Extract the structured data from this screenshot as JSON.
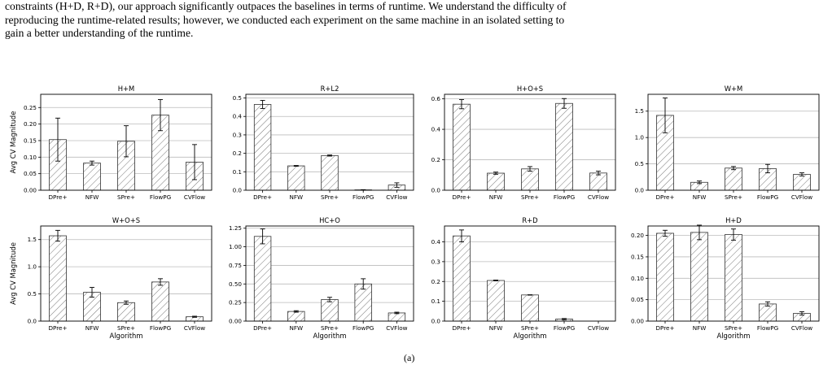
{
  "paragraph": {
    "line1": "constraints (H+D, R+D), our approach significantly outpaces the baselines in terms of runtime. We understand the difficulty of",
    "line2": "reproducing the runtime-related results; however, we conducted each experiment on the same machine in an isolated setting to",
    "line3": "gain a better understanding of the runtime."
  },
  "caption_fragment": "(a)",
  "chart_data": [
    {
      "type": "bar",
      "title": "H+M",
      "categories": [
        "DPre+",
        "NFW",
        "SPre+",
        "FlowPG",
        "CVFlow"
      ],
      "values": [
        0.153,
        0.082,
        0.148,
        0.227,
        0.085
      ],
      "errors": [
        0.065,
        0.006,
        0.047,
        0.047,
        0.053
      ],
      "ylim": [
        0,
        0.29
      ],
      "yticks": [
        0.0,
        0.05,
        0.1,
        0.15,
        0.2,
        0.25
      ],
      "ytick_labels": [
        "0.00",
        "0.05",
        "0.10",
        "0.15",
        "0.20",
        "0.25"
      ],
      "ylabel": "Avg CV Magnitude",
      "xlabel": "",
      "hatch": true,
      "grid": "y"
    },
    {
      "type": "bar",
      "title": "R+L2",
      "categories": [
        "DPre+",
        "NFW",
        "SPre+",
        "FlowPG",
        "CVFlow"
      ],
      "values": [
        0.465,
        0.132,
        0.188,
        0.002,
        0.028
      ],
      "errors": [
        0.022,
        0.002,
        0.003,
        0.001,
        0.012
      ],
      "ylim": [
        0,
        0.52
      ],
      "yticks": [
        0.0,
        0.1,
        0.2,
        0.3,
        0.4,
        0.5
      ],
      "ytick_labels": [
        "0.0",
        "0.1",
        "0.2",
        "0.3",
        "0.4",
        "0.5"
      ],
      "ylabel": "",
      "xlabel": "",
      "hatch": true,
      "grid": "y"
    },
    {
      "type": "bar",
      "title": "H+O+S",
      "categories": [
        "DPre+",
        "NFW",
        "SPre+",
        "FlowPG",
        "CVFlow"
      ],
      "values": [
        0.565,
        0.112,
        0.14,
        0.57,
        0.113
      ],
      "errors": [
        0.03,
        0.007,
        0.015,
        0.032,
        0.012
      ],
      "ylim": [
        0,
        0.63
      ],
      "yticks": [
        0.0,
        0.2,
        0.4,
        0.6
      ],
      "ytick_labels": [
        "0.0",
        "0.2",
        "0.4",
        "0.6"
      ],
      "ylabel": "",
      "xlabel": "",
      "hatch": true,
      "grid": "y"
    },
    {
      "type": "bar",
      "title": "W+M",
      "categories": [
        "DPre+",
        "NFW",
        "SPre+",
        "FlowPG",
        "CVFlow"
      ],
      "values": [
        1.42,
        0.15,
        0.42,
        0.41,
        0.3
      ],
      "errors": [
        0.33,
        0.025,
        0.03,
        0.08,
        0.03
      ],
      "ylim": [
        0,
        1.82
      ],
      "yticks": [
        0.0,
        0.5,
        1.0,
        1.5
      ],
      "ytick_labels": [
        "0.0",
        "0.5",
        "1.0",
        "1.5"
      ],
      "ylabel": "",
      "xlabel": "",
      "hatch": true,
      "grid": "y"
    },
    {
      "type": "bar",
      "title": "W+O+S",
      "categories": [
        "DPre+",
        "NFW",
        "SPre+",
        "FlowPG",
        "CVFlow"
      ],
      "values": [
        1.57,
        0.53,
        0.34,
        0.72,
        0.08
      ],
      "errors": [
        0.1,
        0.09,
        0.03,
        0.06,
        0.01
      ],
      "ylim": [
        0,
        1.75
      ],
      "yticks": [
        0.0,
        0.5,
        1.0,
        1.5
      ],
      "ytick_labels": [
        "0.0",
        "0.5",
        "1.0",
        "1.5"
      ],
      "ylabel": "Avg CV Magnitude",
      "xlabel": "Algorithm",
      "hatch": true,
      "grid": "y"
    },
    {
      "type": "bar",
      "title": "HC+O",
      "categories": [
        "DPre+",
        "NFW",
        "SPre+",
        "FlowPG",
        "CVFlow"
      ],
      "values": [
        1.14,
        0.13,
        0.29,
        0.5,
        0.11
      ],
      "errors": [
        0.1,
        0.01,
        0.03,
        0.07,
        0.01
      ],
      "ylim": [
        0,
        1.28
      ],
      "yticks": [
        0.0,
        0.25,
        0.5,
        0.75,
        1.0,
        1.25
      ],
      "ytick_labels": [
        "0.00",
        "0.25",
        "0.50",
        "0.75",
        "1.00",
        "1.25"
      ],
      "ylabel": "",
      "xlabel": "Algorithm",
      "hatch": true,
      "grid": "y"
    },
    {
      "type": "bar",
      "title": "R+D",
      "categories": [
        "DPre+",
        "NFW",
        "SPre+",
        "FlowPG",
        "CVFlow"
      ],
      "values": [
        0.43,
        0.205,
        0.132,
        0.01,
        0.0
      ],
      "errors": [
        0.03,
        0.002,
        0.001,
        0.003,
        0.0
      ],
      "ylim": [
        0,
        0.48
      ],
      "yticks": [
        0.0,
        0.1,
        0.2,
        0.3,
        0.4
      ],
      "ytick_labels": [
        "0.0",
        "0.1",
        "0.2",
        "0.3",
        "0.4"
      ],
      "ylabel": "",
      "xlabel": "Algorithm",
      "hatch": true,
      "grid": "y"
    },
    {
      "type": "bar",
      "title": "H+D",
      "categories": [
        "DPre+",
        "NFW",
        "SPre+",
        "FlowPG",
        "CVFlow"
      ],
      "values": [
        0.205,
        0.207,
        0.202,
        0.04,
        0.018
      ],
      "errors": [
        0.007,
        0.017,
        0.013,
        0.005,
        0.004
      ],
      "ylim": [
        0,
        0.222
      ],
      "yticks": [
        0.0,
        0.05,
        0.1,
        0.15,
        0.2
      ],
      "ytick_labels": [
        "0.00",
        "0.05",
        "0.10",
        "0.15",
        "0.20"
      ],
      "ylabel": "",
      "xlabel": "Algorithm",
      "hatch": true,
      "grid": "y"
    }
  ],
  "colors": {
    "bar_fill": "#ffffff",
    "bar_edge": "#333333",
    "hatch": "#777777",
    "grid": "#bbbbbb",
    "axis": "#000000",
    "text": "#000000"
  }
}
